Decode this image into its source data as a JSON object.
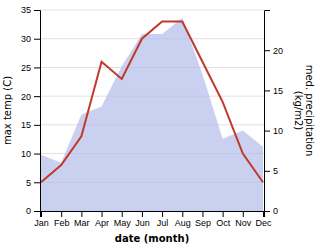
{
  "chart_data": {
    "type": "line",
    "categories": [
      "Jan",
      "Feb",
      "Mar",
      "Apr",
      "May",
      "Jun",
      "Jul",
      "Aug",
      "Sep",
      "Oct",
      "Nov",
      "Dec"
    ],
    "series": [
      {
        "type": "area",
        "axis": "y2",
        "color": "#b3bce8",
        "values": [
          7,
          6,
          12,
          13,
          18,
          22,
          22,
          24,
          17,
          9,
          10,
          8
        ]
      },
      {
        "type": "line",
        "color": "#c0392b",
        "values": [
          5,
          8,
          13,
          26,
          23,
          30,
          33,
          33,
          26,
          19,
          10,
          5
        ]
      }
    ],
    "xlabel": "date (month)",
    "ylabel": "max temp (C)",
    "y2label": "med. precipitation\n(kg/m2)",
    "ylim": [
      0,
      35
    ],
    "yticks": [
      0,
      5,
      10,
      15,
      20,
      25,
      30,
      35
    ],
    "y2lim": [
      0,
      25
    ],
    "y2ticks": [
      0,
      5,
      10,
      15,
      20
    ],
    "grid": true
  }
}
